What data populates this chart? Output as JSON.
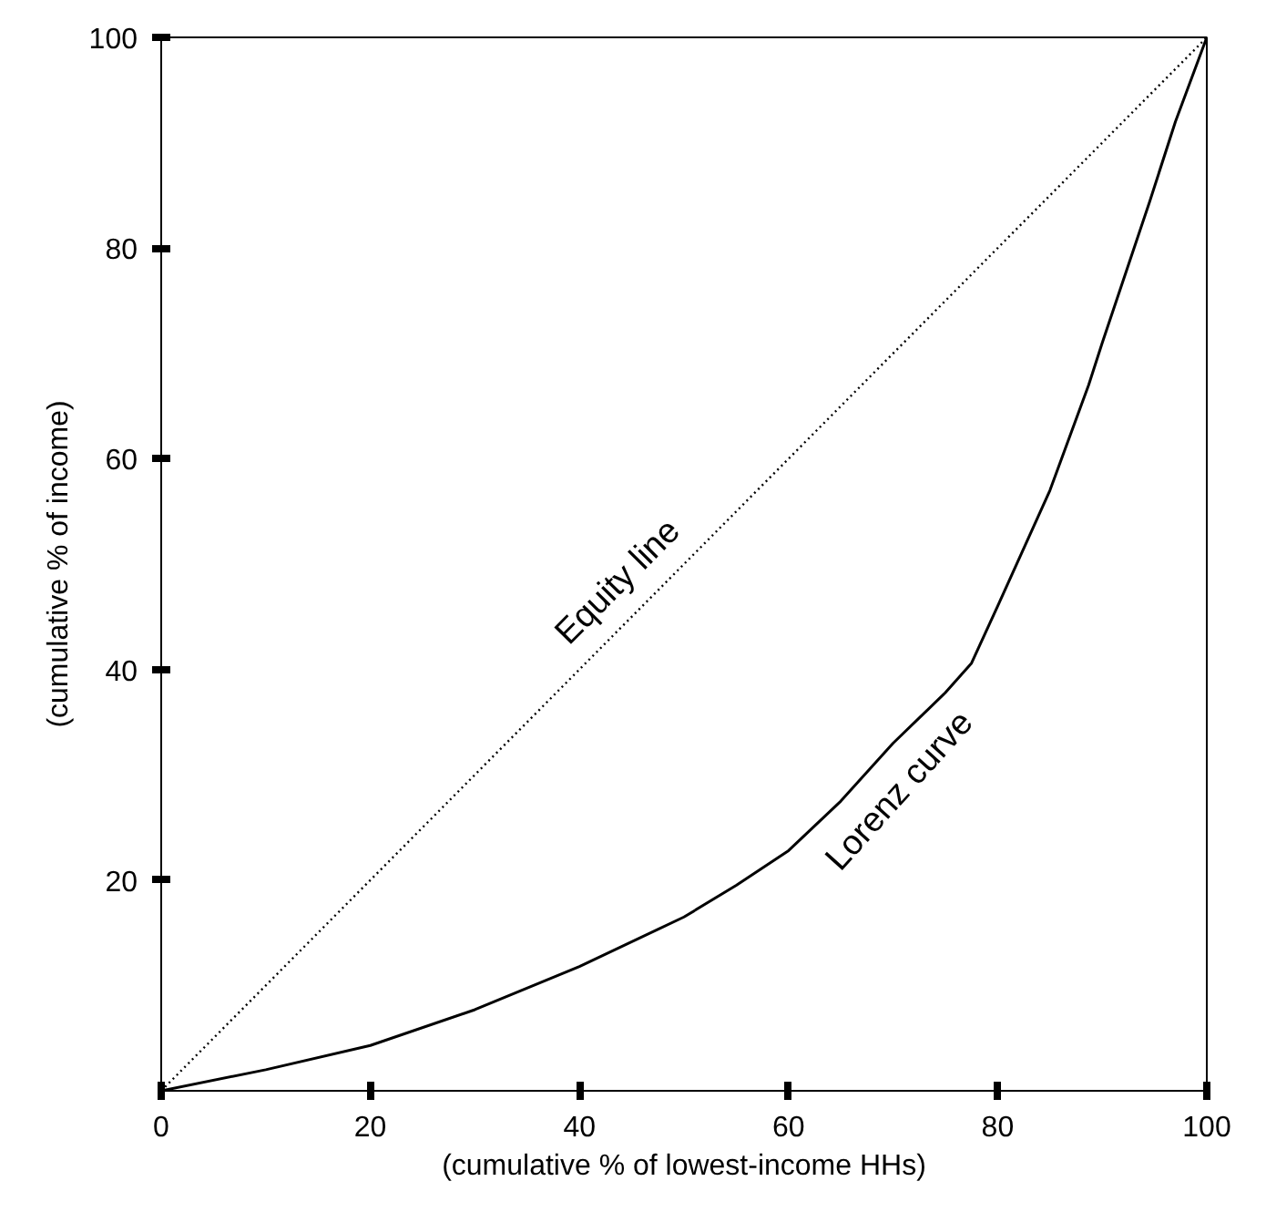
{
  "chart_data": {
    "type": "line",
    "xlabel": "(cumulative % of lowest-income HHs)",
    "ylabel": "(cumulative % of income)",
    "xlim": [
      0,
      100
    ],
    "ylim": [
      0,
      100
    ],
    "xticks": [
      0,
      20,
      40,
      60,
      80,
      100
    ],
    "yticks": [
      20,
      40,
      60,
      80,
      100
    ],
    "grid": false,
    "series": [
      {
        "name": "Equity line",
        "color": "#000000",
        "line_style": "dotted",
        "x": [
          0,
          100
        ],
        "values": [
          0,
          100
        ]
      },
      {
        "name": "Lorenz curve",
        "color": "#000000",
        "line_style": "solid",
        "x": [
          0,
          10,
          20,
          30,
          40,
          50,
          55,
          60,
          65,
          70,
          75,
          77.5,
          80,
          85,
          88.7,
          90,
          94.5,
          97,
          100
        ],
        "values": [
          0,
          2,
          4.3,
          7.7,
          11.8,
          16.5,
          19.5,
          22.8,
          27.5,
          33,
          37.8,
          40.6,
          46,
          57,
          67,
          71,
          84.3,
          92,
          100
        ]
      }
    ]
  }
}
